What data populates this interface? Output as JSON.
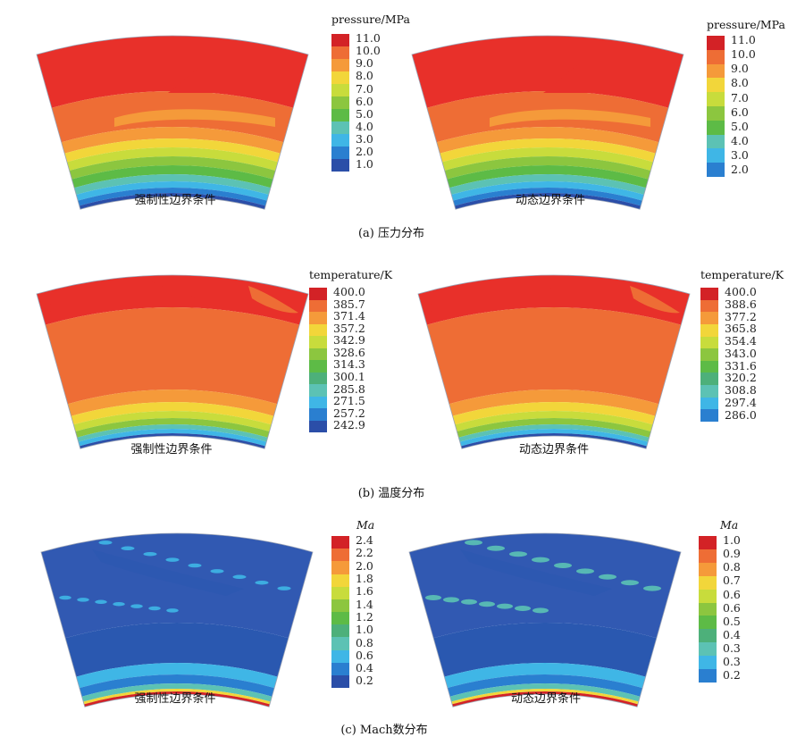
{
  "panels": [
    {
      "caption": "(a) 压力分布",
      "plots": [
        {
          "label": "强制性边界条件",
          "theme": "pressure",
          "legend_title": "pressure/MPa",
          "legend_values": [
            "11.0",
            "10.0",
            "9.0",
            "8.0",
            "7.0",
            "6.0",
            "5.0",
            "4.0",
            "3.0",
            "2.0",
            "1.0"
          ]
        },
        {
          "label": "动态边界条件",
          "theme": "pressure",
          "legend_title": "pressure/MPa",
          "legend_values": [
            "11.0",
            "10.0",
            "9.0",
            "8.0",
            "7.0",
            "6.0",
            "5.0",
            "4.0",
            "3.0",
            "2.0"
          ]
        }
      ]
    },
    {
      "caption": "(b) 温度分布",
      "plots": [
        {
          "label": "强制性边界条件",
          "theme": "temperature",
          "legend_title": "temperature/K",
          "legend_values": [
            "400.0",
            "385.7",
            "371.4",
            "357.2",
            "342.9",
            "328.6",
            "314.3",
            "300.1",
            "285.8",
            "271.5",
            "257.2",
            "242.9"
          ]
        },
        {
          "label": "动态边界条件",
          "theme": "temperature",
          "legend_title": "temperature/K",
          "legend_values": [
            "400.0",
            "388.6",
            "377.2",
            "365.8",
            "354.4",
            "343.0",
            "331.6",
            "320.2",
            "308.8",
            "297.4",
            "286.0"
          ]
        }
      ]
    },
    {
      "caption": "(c) Mach数分布",
      "plots": [
        {
          "label": "强制性边界条件",
          "theme": "mach",
          "legend_title": "Ma",
          "legend_values": [
            "2.4",
            "2.2",
            "2.0",
            "1.8",
            "1.6",
            "1.4",
            "1.2",
            "1.0",
            "0.8",
            "0.6",
            "0.4",
            "0.2"
          ]
        },
        {
          "label": "动态边界条件",
          "theme": "mach",
          "legend_title": "Ma",
          "legend_values": [
            "1.0",
            "0.9",
            "0.8",
            "0.7",
            "0.6",
            "0.6",
            "0.5",
            "0.4",
            "0.3",
            "0.3",
            "0.2"
          ]
        }
      ]
    }
  ],
  "colors": {
    "red": "#e8302a",
    "dark_red": "#d32226",
    "orange": "#ee6d35",
    "light_orange": "#f59a3a",
    "yellow": "#f2d63a",
    "yellow_green": "#c8dc3c",
    "green": "#8cc63f",
    "mid_green": "#5dbb46",
    "teal_green": "#4db07a",
    "teal": "#5cc2b4",
    "cyan": "#3fb6e6",
    "blue": "#2a7fd0",
    "dark_blue": "#2b4ea8",
    "navy": "#2a58b0",
    "field_blue": "#3159b2"
  }
}
